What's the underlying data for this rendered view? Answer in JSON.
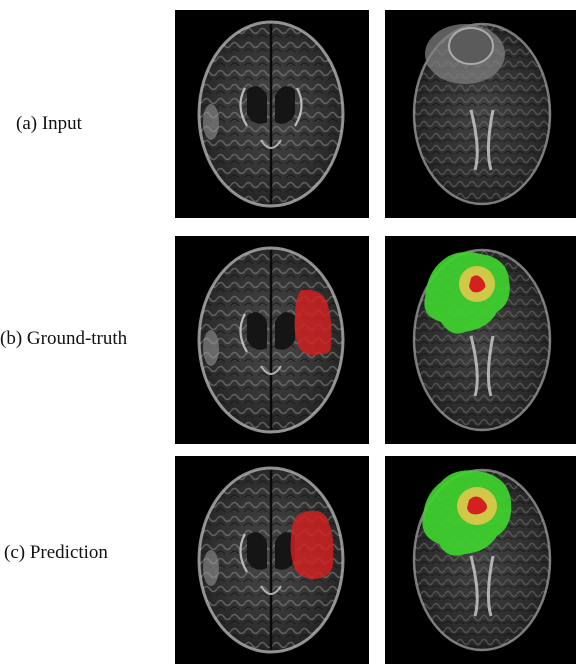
{
  "rows": [
    {
      "label": "(a) Input"
    },
    {
      "label": "(b) Ground-truth"
    },
    {
      "label": "(c) Prediction"
    }
  ],
  "colors": {
    "background": "#000000",
    "label_red": "#d42020",
    "label_green": "#3fd22f",
    "label_yellow": "#d9c84a"
  }
}
